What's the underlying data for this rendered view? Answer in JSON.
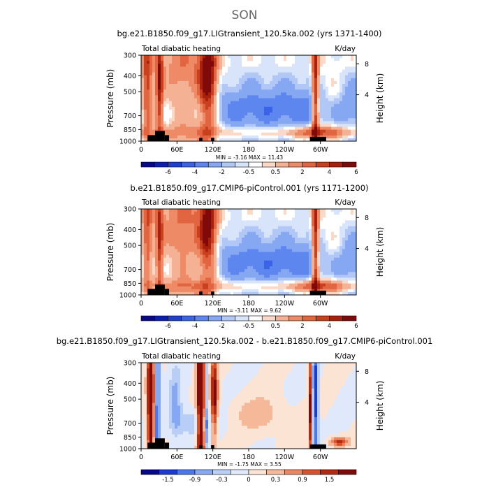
{
  "page_title": "SON",
  "panels": [
    {
      "title": "bg.e21.B1850.f09_g17.LIGtransient_120.5ka.002 (yrs 1371-1400)",
      "left_label": "Total diabatic heating",
      "right_label": "K/day",
      "stats": "MIN =   -3.16   MAX =   11.43",
      "colorbar_labels": [
        "-6",
        "-4",
        "-2",
        "-0.5",
        "0.5",
        "2",
        "4",
        "6"
      ]
    },
    {
      "title": "b.e21.B1850.f09_g17.CMIP6-piControl.001 (yrs 1171-1200)",
      "left_label": "Total diabatic heating",
      "right_label": "K/day",
      "stats": "MIN =   -3.11   MAX =   9.62",
      "colorbar_labels": [
        "-6",
        "-4",
        "-2",
        "-0.5",
        "0.5",
        "2",
        "4",
        "6"
      ]
    },
    {
      "title": "bg.e21.B1850.f09_g17.LIGtransient_120.5ka.002 - b.e21.B1850.f09_g17.CMIP6-piControl.001",
      "left_label": "Total diabatic heating",
      "right_label": "K/day",
      "stats": "MIN =   -1.75   MAX =   3.55",
      "colorbar_labels": [
        "-1.5",
        "-0.9",
        "-0.3",
        "0",
        "0.3",
        "0.9",
        "1.5"
      ]
    }
  ],
  "axis": {
    "y_label": "Pressure (mb)",
    "y2_label": "Height (km)",
    "y_ticks": [
      "300",
      "400",
      "500",
      "700",
      "850",
      "1000"
    ],
    "y2_ticks": [
      "8",
      "4"
    ],
    "x_ticks": [
      "0",
      "60E",
      "120E",
      "180",
      "120W",
      "60W"
    ]
  },
  "palette": {
    "mean": [
      "#08088c",
      "#0c1fb4",
      "#1e3fd2",
      "#3a63e6",
      "#5d86ee",
      "#86a8f2",
      "#b1c8f6",
      "#d8e4fa",
      "#ffffff",
      "#fbd9c6",
      "#f5b194",
      "#ee8a66",
      "#e06540",
      "#c9401f",
      "#a9200c",
      "#800a0a"
    ],
    "diff": [
      "#08088c",
      "#1a3bd0",
      "#4a78ea",
      "#86a8f2",
      "#b9cef6",
      "#e0e9fb",
      "#fbe4d4",
      "#f5b898",
      "#ec8660",
      "#d5522a",
      "#b02a10",
      "#800a0a"
    ]
  },
  "chart_data": [
    {
      "type": "heatmap",
      "title": "bg.e21.B1850.f09_g17.LIGtransient_120.5ka.002 (yrs 1371-1400)",
      "variable": "Total diabatic heating",
      "units": "K/day",
      "x_ticks": [
        "0",
        "60E",
        "120E",
        "180",
        "120W",
        "60W"
      ],
      "y_ticks_mb": [
        300,
        400,
        500,
        700,
        850,
        1000
      ],
      "y2_ticks_km": [
        8,
        4
      ],
      "levels": [
        -6,
        -4,
        -2,
        -0.5,
        0.5,
        2,
        4,
        6
      ],
      "min": -3.16,
      "max": 11.43
    },
    {
      "type": "heatmap",
      "title": "b.e21.B1850.f09_g17.CMIP6-piControl.001 (yrs 1171-1200)",
      "variable": "Total diabatic heating",
      "units": "K/day",
      "x_ticks": [
        "0",
        "60E",
        "120E",
        "180",
        "120W",
        "60W"
      ],
      "y_ticks_mb": [
        300,
        400,
        500,
        700,
        850,
        1000
      ],
      "y2_ticks_km": [
        8,
        4
      ],
      "levels": [
        -6,
        -4,
        -2,
        -0.5,
        0.5,
        2,
        4,
        6
      ],
      "min": -3.11,
      "max": 9.62
    },
    {
      "type": "heatmap",
      "title": "bg.e21.B1850.f09_g17.LIGtransient_120.5ka.002 - b.e21.B1850.f09_g17.CMIP6-piControl.001",
      "variable": "Total diabatic heating",
      "units": "K/day",
      "x_ticks": [
        "0",
        "60E",
        "120E",
        "180",
        "120W",
        "60W"
      ],
      "y_ticks_mb": [
        300,
        400,
        500,
        700,
        850,
        1000
      ],
      "y2_ticks_km": [
        8,
        4
      ],
      "levels": [
        -1.5,
        -0.9,
        -0.3,
        0,
        0.3,
        0.9,
        1.5
      ],
      "min": -1.75,
      "max": 3.55
    }
  ]
}
